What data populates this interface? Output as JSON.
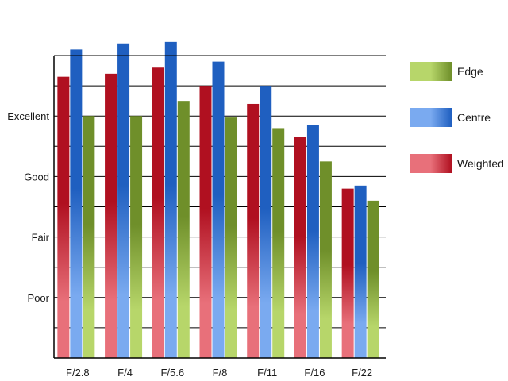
{
  "chart_data": {
    "type": "bar",
    "categories": [
      "F/2.8",
      "F/4",
      "F/5.6",
      "F/8",
      "F/11",
      "F/16",
      "F/22"
    ],
    "series": [
      {
        "name": "Weighted",
        "values": [
          9.3,
          9.4,
          9.6,
          9.0,
          8.4,
          7.3,
          5.6
        ],
        "color_light": "#e8707a",
        "color_dark": "#b01020"
      },
      {
        "name": "Centre",
        "values": [
          10.2,
          10.4,
          10.45,
          9.8,
          9.0,
          7.7,
          5.7
        ],
        "color_light": "#7aaaf0",
        "color_dark": "#1f5fc0"
      },
      {
        "name": "Edge",
        "values": [
          8.0,
          8.0,
          8.5,
          7.95,
          7.6,
          6.5,
          5.2
        ],
        "color_light": "#b7d66a",
        "color_dark": "#6f8f2a"
      }
    ],
    "y_tick_labels": [
      {
        "label": "Poor",
        "value": 2
      },
      {
        "label": "Fair",
        "value": 4
      },
      {
        "label": "Good",
        "value": 6
      },
      {
        "label": "Excellent",
        "value": 8
      }
    ],
    "ylim": [
      0,
      10
    ],
    "grid": true,
    "legend_position": "right",
    "legend_order": [
      "Edge",
      "Centre",
      "Weighted"
    ],
    "title": "",
    "xlabel": "",
    "ylabel": ""
  }
}
